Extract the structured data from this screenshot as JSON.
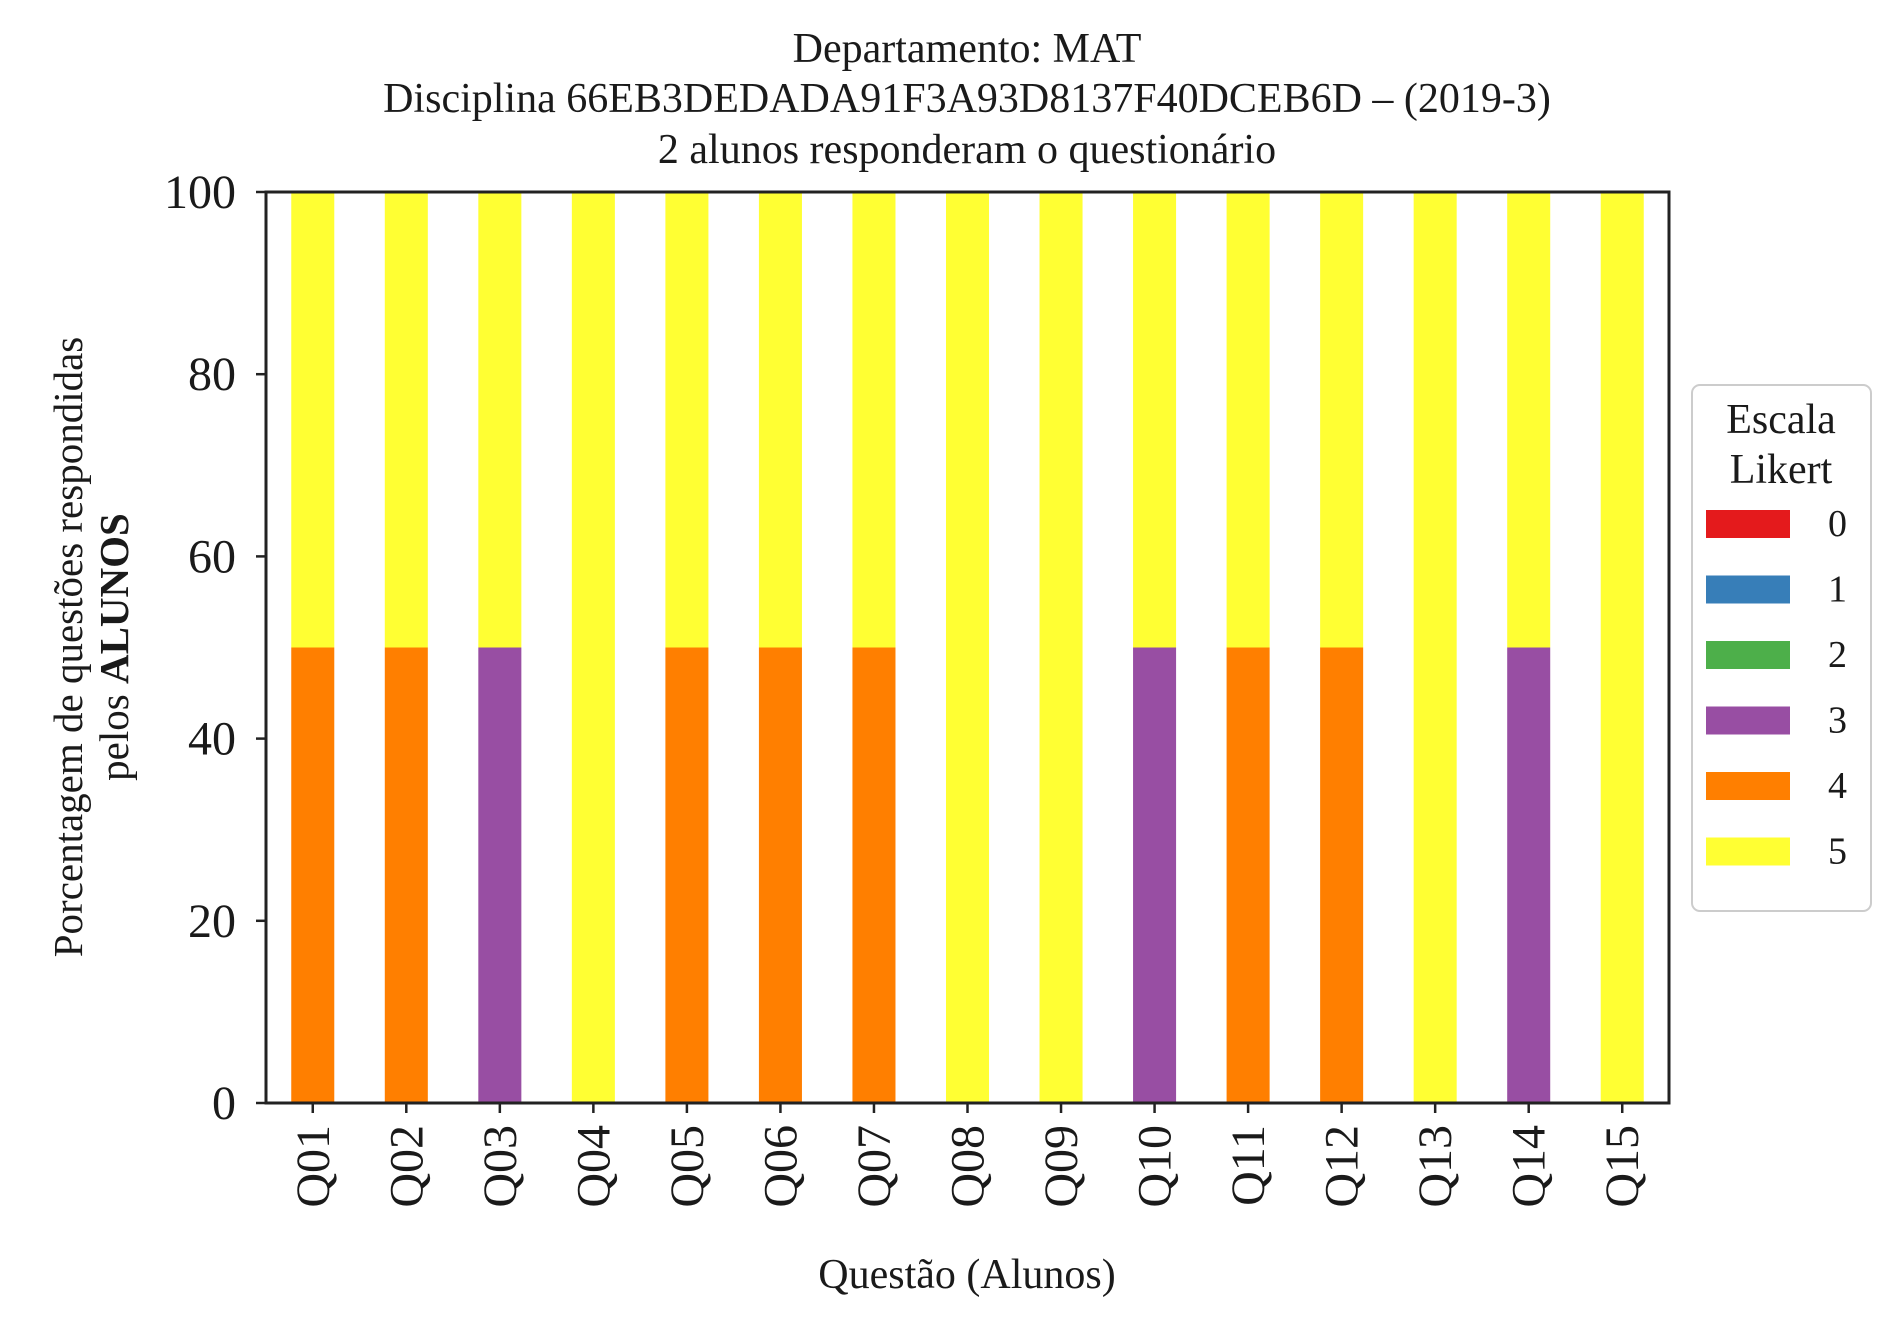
{
  "chart_data": {
    "type": "bar",
    "stacked": true,
    "title_lines": [
      "Departamento: MAT",
      "Disciplina 66EB3DEDADA91F3A93D8137F40DCEB6D – (2019-3)",
      "2 alunos responderam o questionário"
    ],
    "xlabel": "Questão (Alunos)",
    "ylabel_line1": "Porcentagem de questões respondidas",
    "ylabel_line2_prefix": "pelos ",
    "ylabel_line2_bold": "ALUNOS",
    "ylim": [
      0,
      100
    ],
    "yticks": [
      0,
      20,
      40,
      60,
      80,
      100
    ],
    "categories": [
      "Q01",
      "Q02",
      "Q03",
      "Q04",
      "Q05",
      "Q06",
      "Q07",
      "Q08",
      "Q09",
      "Q10",
      "Q11",
      "Q12",
      "Q13",
      "Q14",
      "Q15"
    ],
    "series": [
      {
        "name": "0",
        "color": "#e41a1c",
        "values": [
          0,
          0,
          0,
          0,
          0,
          0,
          0,
          0,
          0,
          0,
          0,
          0,
          0,
          0,
          0
        ]
      },
      {
        "name": "1",
        "color": "#377eb8",
        "values": [
          0,
          0,
          0,
          0,
          0,
          0,
          0,
          0,
          0,
          0,
          0,
          0,
          0,
          0,
          0
        ]
      },
      {
        "name": "2",
        "color": "#4daf4a",
        "values": [
          0,
          0,
          0,
          0,
          0,
          0,
          0,
          0,
          0,
          0,
          0,
          0,
          0,
          0,
          0
        ]
      },
      {
        "name": "3",
        "color": "#984ea3",
        "values": [
          0,
          0,
          50,
          0,
          0,
          0,
          0,
          0,
          0,
          50,
          0,
          0,
          0,
          50,
          0
        ]
      },
      {
        "name": "4",
        "color": "#ff7f00",
        "values": [
          50,
          50,
          0,
          0,
          50,
          50,
          50,
          0,
          0,
          0,
          50,
          50,
          0,
          0,
          0
        ]
      },
      {
        "name": "5",
        "color": "#ffff33",
        "values": [
          50,
          50,
          50,
          100,
          50,
          50,
          50,
          100,
          100,
          50,
          50,
          50,
          100,
          50,
          100
        ]
      }
    ],
    "legend": {
      "title_lines": [
        "Escala",
        "Likert"
      ],
      "placement": "center-right-outside"
    },
    "grid": false
  }
}
